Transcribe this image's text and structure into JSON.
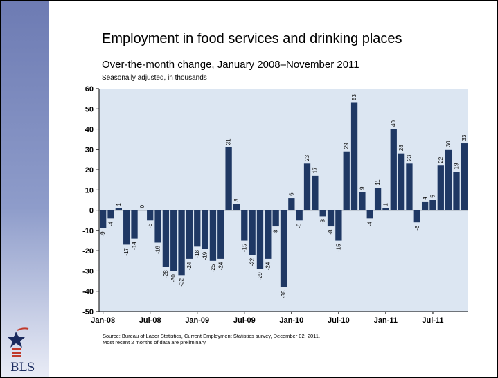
{
  "slide": {
    "title": "Employment in food services and drinking places",
    "subtitle": "Over-the-month change, January 2008–November 2011",
    "note": "Seasonally adjusted, in thousands",
    "source_line1": "Source: Bureau of Labor Statistics, Current Employment Statistics survey, December 02, 2011.",
    "source_line2": "Most recent 2 months of data are preliminary.",
    "logo_text": "BLS"
  },
  "colors": {
    "bar": "#1f3864",
    "plot_bg": "#dce6f2",
    "sidebar": "#7f8ec4"
  },
  "chart_data": {
    "type": "bar",
    "title": "Employment in food services and drinking places",
    "subtitle": "Over-the-month change, January 2008–November 2011",
    "ylabel": "Seasonally adjusted, in thousands",
    "ylim": [
      -50,
      60
    ],
    "yticks": [
      -50,
      -40,
      -30,
      -20,
      -10,
      0,
      10,
      20,
      30,
      40,
      50,
      60
    ],
    "grid": false,
    "x_tick_labels": [
      {
        "index": 0,
        "label": "Jan-08"
      },
      {
        "index": 6,
        "label": "Jul-08"
      },
      {
        "index": 12,
        "label": "Jan-09"
      },
      {
        "index": 18,
        "label": "Jul-09"
      },
      {
        "index": 24,
        "label": "Jan-10"
      },
      {
        "index": 30,
        "label": "Jul-10"
      },
      {
        "index": 36,
        "label": "Jan-11"
      },
      {
        "index": 42,
        "label": "Jul-11"
      }
    ],
    "categories": [
      "Jan-08",
      "Feb-08",
      "Mar-08",
      "Apr-08",
      "May-08",
      "Jun-08",
      "Jul-08",
      "Aug-08",
      "Sep-08",
      "Oct-08",
      "Nov-08",
      "Dec-08",
      "Jan-09",
      "Feb-09",
      "Mar-09",
      "Apr-09",
      "May-09",
      "Jun-09",
      "Jul-09",
      "Aug-09",
      "Sep-09",
      "Oct-09",
      "Nov-09",
      "Dec-09",
      "Jan-10",
      "Feb-10",
      "Mar-10",
      "Apr-10",
      "May-10",
      "Jun-10",
      "Jul-10",
      "Aug-10",
      "Sep-10",
      "Oct-10",
      "Nov-10",
      "Dec-10",
      "Jan-11",
      "Feb-11",
      "Mar-11",
      "Apr-11",
      "May-11",
      "Jun-11",
      "Jul-11",
      "Aug-11",
      "Sep-11",
      "Oct-11",
      "Nov-11"
    ],
    "values": [
      -9,
      -4,
      1,
      -17,
      -14,
      0,
      -5,
      -16,
      -28,
      -30,
      -32,
      -24,
      -18,
      -19,
      -25,
      -24,
      31,
      3,
      -15,
      -22,
      -29,
      -24,
      -8,
      -38,
      6,
      -5,
      23,
      17,
      -3,
      -8,
      -15,
      29,
      53,
      9,
      -4,
      11,
      1,
      40,
      28,
      23,
      -6,
      4,
      5,
      22,
      30,
      19,
      33
    ],
    "data_labels": [
      "-9",
      "-4",
      "1",
      "-17",
      "-14",
      "0",
      "-5",
      "-16",
      "-28",
      "-30",
      "-32",
      "-24",
      "-18",
      "-19",
      "-25",
      "-24",
      "31",
      "3",
      "-15",
      "-22",
      "-29",
      "-24",
      "-8",
      "-38",
      "6",
      "-5",
      "23",
      "17",
      "-3",
      "-8",
      "-15",
      "29",
      "53",
      "9",
      "-4",
      "11",
      "1",
      "40",
      "28",
      "23",
      "-6",
      "4",
      "5",
      "22",
      "30",
      "19",
      "33"
    ]
  }
}
